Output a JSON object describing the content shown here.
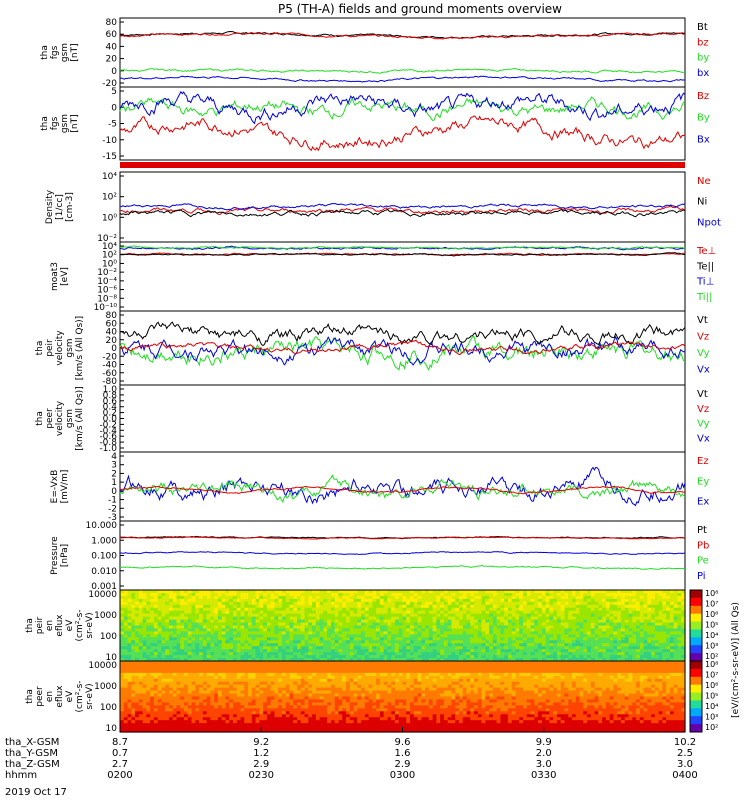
{
  "title": "P5 (TH-A) fields and ground moments overview",
  "date_label": "2019 Oct 17",
  "colors": {
    "black": "#000000",
    "red": "#e00000",
    "green": "#22dd22",
    "blue": "#0000dd"
  },
  "chart_data": [
    {
      "type": "line",
      "ylabel": [
        "tha",
        "fgs",
        "gsm",
        "[nT]"
      ],
      "yticks": [
        "80",
        "60",
        "40",
        "20",
        "0",
        "-20"
      ],
      "ylim": [
        -25,
        85
      ],
      "legend": [
        {
          "name": "Bt",
          "color": "black"
        },
        {
          "name": "bz",
          "color": "red"
        },
        {
          "name": "by",
          "color": "green"
        },
        {
          "name": "bx",
          "color": "blue"
        }
      ],
      "series": [
        {
          "name": "Bt",
          "base": 58,
          "noise": 2
        },
        {
          "name": "bz",
          "base": 57,
          "noise": 2
        },
        {
          "name": "by",
          "base": 0,
          "noise": 2
        },
        {
          "name": "bx",
          "base": -12,
          "noise": 2
        }
      ]
    },
    {
      "type": "line",
      "ylabel": [
        "tha",
        "fgs",
        "gsm",
        "[nT]"
      ],
      "yticks": [
        "5",
        "0",
        "-5",
        "-10",
        "-15"
      ],
      "ylim": [
        -18,
        6
      ],
      "legend": [
        {
          "name": "Bz",
          "color": "red"
        },
        {
          "name": "By",
          "color": "green"
        },
        {
          "name": "Bx",
          "color": "blue"
        }
      ],
      "series": [
        {
          "name": "Bz",
          "base": -9,
          "noise": 3
        },
        {
          "name": "By",
          "base": -1,
          "noise": 2
        },
        {
          "name": "Bx",
          "base": 0,
          "noise": 3
        }
      ]
    },
    {
      "type": "line",
      "ylabel": [
        "Density",
        "[1/cc]",
        "[cm-3]"
      ],
      "yticks": [
        "10⁴",
        "10²",
        "10⁰",
        "10⁻²"
      ],
      "legend": [
        {
          "name": "Ne",
          "color": "red"
        },
        {
          "name": "Ni",
          "color": "black"
        },
        {
          "name": "Npot",
          "color": "blue"
        }
      ]
    },
    {
      "type": "line",
      "ylabel": [
        "moat3",
        "[eV]"
      ],
      "yticks": [
        "10⁴",
        "10²",
        "10⁰",
        "10⁻²",
        "10⁻⁴",
        "10⁻⁶",
        "10⁻⁸",
        "10⁻¹⁰"
      ],
      "legend": [
        {
          "name": "Te⊥",
          "color": "red"
        },
        {
          "name": "Te||",
          "color": "black"
        },
        {
          "name": "Ti⊥",
          "color": "blue"
        },
        {
          "name": "Ti||",
          "color": "green"
        }
      ]
    },
    {
      "type": "line",
      "ylabel": [
        "tha",
        "peir",
        "velocity",
        "gsm",
        "[km/s (All Qs)]"
      ],
      "yticks": [
        "80",
        "60",
        "40",
        "20",
        "0",
        "-20",
        "-40",
        "-60",
        "-80"
      ],
      "ylim": [
        -85,
        85
      ],
      "legend": [
        {
          "name": "Vt",
          "color": "black"
        },
        {
          "name": "Vz",
          "color": "red"
        },
        {
          "name": "Vy",
          "color": "green"
        },
        {
          "name": "Vx",
          "color": "blue"
        }
      ]
    },
    {
      "type": "line",
      "ylabel": [
        "tha",
        "peer",
        "velocity",
        "gsm",
        "[km/s (All Qs)]"
      ],
      "yticks": [
        "1.0",
        "0.8",
        "0.6",
        "0.4",
        "0.2",
        "0.0",
        "-0.2",
        "-0.4",
        "-0.6",
        "-0.8",
        "-1.0"
      ],
      "legend": [
        {
          "name": "Vt",
          "color": "black"
        },
        {
          "name": "Vz",
          "color": "red"
        },
        {
          "name": "Vy",
          "color": "green"
        },
        {
          "name": "Vx",
          "color": "blue"
        }
      ]
    },
    {
      "type": "line",
      "ylabel": [
        "E=-VxB",
        "[mV/m]"
      ],
      "yticks": [
        "4",
        "3",
        "2",
        "1",
        "0",
        "-1",
        "-2",
        "-3"
      ],
      "ylim": [
        -3.5,
        4.5
      ],
      "legend": [
        {
          "name": "Ez",
          "color": "red"
        },
        {
          "name": "Ey",
          "color": "green"
        },
        {
          "name": "Ex",
          "color": "blue"
        }
      ]
    },
    {
      "type": "line",
      "ylabel": [
        "Pressure",
        "[nPa]"
      ],
      "yticks": [
        "10.000",
        "1.000",
        "0.100",
        "0.010",
        "0.001"
      ],
      "legend": [
        {
          "name": "Pt",
          "color": "black"
        },
        {
          "name": "Pb",
          "color": "red"
        },
        {
          "name": "Pe",
          "color": "green"
        },
        {
          "name": "Pi",
          "color": "blue"
        }
      ]
    },
    {
      "type": "heatmap",
      "ylabel": [
        "tha",
        "peir",
        "en",
        "eflux",
        "eV",
        "(cm²-s-",
        "sr-eV)"
      ],
      "yticks": [
        "10000",
        "1000",
        "100",
        "10"
      ]
    },
    {
      "type": "heatmap",
      "ylabel": [
        "tha",
        "peer",
        "en",
        "eflux",
        "eV",
        "(cm²-s-",
        "sr-eV)"
      ],
      "yticks": [
        "10000",
        "1000",
        "100",
        "10"
      ]
    }
  ],
  "colorbar_ticks": [
    "10⁸",
    "10⁷",
    "10⁶",
    "10⁵",
    "10⁴",
    "10³",
    "10²"
  ],
  "colorbar_label": "[eV/(cm²-s-sr-eV)] (All Qs)",
  "x_axis": {
    "rows": [
      "tha_X-GSM",
      "tha_Y-GSM",
      "tha_Z-GSM",
      "hhmm"
    ],
    "columns": [
      [
        "8.7",
        "0.7",
        "2.7",
        "0200"
      ],
      [
        "9.2",
        "1.2",
        "2.9",
        "0230"
      ],
      [
        "9.6",
        "1.6",
        "2.9",
        "0300"
      ],
      [
        "9.9",
        "2.0",
        "3.0",
        "0330"
      ],
      [
        "10.2",
        "2.5",
        "3.0",
        "0400"
      ]
    ]
  }
}
